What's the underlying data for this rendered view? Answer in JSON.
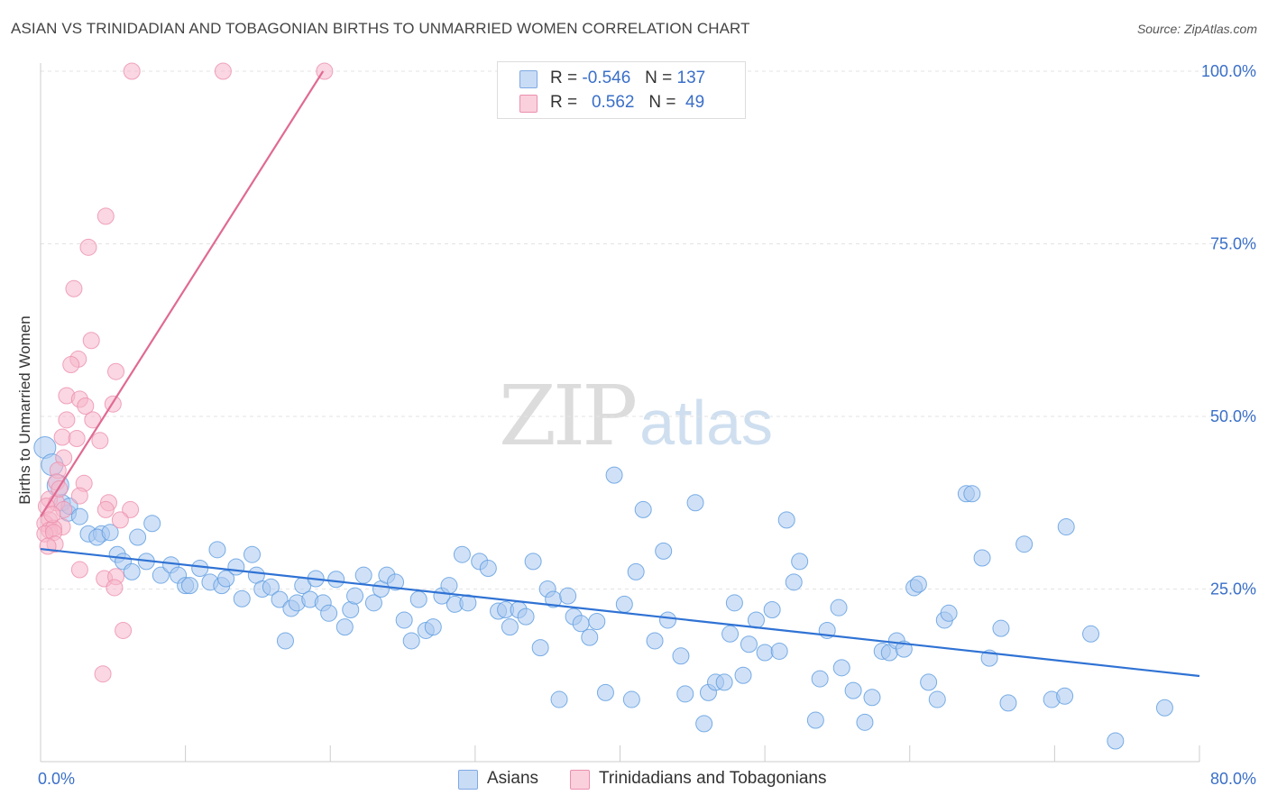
{
  "header": {
    "title": "ASIAN VS TRINIDADIAN AND TOBAGONIAN BIRTHS TO UNMARRIED WOMEN CORRELATION CHART",
    "source": "Source: ZipAtlas.com"
  },
  "watermark": {
    "zip": "ZIP",
    "atlas": "atlas"
  },
  "legend": {
    "rows": [
      {
        "r_label": "R =",
        "r_value": "-0.546",
        "n_label": "N =",
        "n_value": "137",
        "color": "#a9c8f0"
      },
      {
        "r_label": "R =",
        "r_value": "0.562",
        "n_label": "N =",
        "n_value": "49",
        "color": "#f6b7cb"
      }
    ]
  },
  "bottom_legend": {
    "items": [
      {
        "label": "Asians",
        "color": "#a9c8f0"
      },
      {
        "label": "Trinidadians and Tobagonians",
        "color": "#f6b7cb"
      }
    ]
  },
  "chart_data": {
    "type": "scatter",
    "title": "ASIAN VS TRINIDADIAN AND TOBAGONIAN BIRTHS TO UNMARRIED WOMEN CORRELATION CHART",
    "xlabel": "",
    "ylabel": "Births to Unmarried Women",
    "xlim": [
      0,
      80
    ],
    "ylim": [
      0,
      100
    ],
    "x_tick_labels": {
      "0": "0.0%",
      "80": "80.0%"
    },
    "y_tick_labels": {
      "25": "25.0%",
      "50": "50.0%",
      "75": "75.0%",
      "100": "100.0%"
    },
    "grid": true,
    "series": [
      {
        "name": "Asians",
        "color": "#5b9be0",
        "fill": "#a9c8f0",
        "trend": {
          "x": [
            0,
            80
          ],
          "y": [
            30.8,
            12.4
          ],
          "color": "#2f72d4"
        },
        "points": [
          [
            0.3,
            45.5
          ],
          [
            0.8,
            43
          ],
          [
            1.2,
            40
          ],
          [
            1.5,
            37.5
          ],
          [
            1.9,
            36
          ],
          [
            2,
            37
          ],
          [
            2.7,
            35.5
          ],
          [
            3.3,
            33
          ],
          [
            4.2,
            33
          ],
          [
            3.9,
            32.5
          ],
          [
            4.8,
            33.2
          ],
          [
            5.3,
            30
          ],
          [
            5.7,
            29
          ],
          [
            6.3,
            27.5
          ],
          [
            6.7,
            32.5
          ],
          [
            7.7,
            34.5
          ],
          [
            7.3,
            29
          ],
          [
            8.3,
            27
          ],
          [
            9,
            28.5
          ],
          [
            9.5,
            27
          ],
          [
            10,
            25.5
          ],
          [
            10.3,
            25.5
          ],
          [
            11,
            28
          ],
          [
            11.7,
            26
          ],
          [
            12.2,
            30.7
          ],
          [
            12.5,
            25.5
          ],
          [
            12.8,
            26.5
          ],
          [
            13.5,
            28.2
          ],
          [
            13.9,
            23.6
          ],
          [
            14.6,
            30
          ],
          [
            14.9,
            27
          ],
          [
            15.3,
            25
          ],
          [
            15.9,
            25.3
          ],
          [
            16.5,
            23.5
          ],
          [
            16.9,
            17.5
          ],
          [
            17.3,
            22.2
          ],
          [
            17.7,
            23
          ],
          [
            18.1,
            25.5
          ],
          [
            18.6,
            23.5
          ],
          [
            19,
            26.5
          ],
          [
            19.5,
            23
          ],
          [
            19.9,
            21.5
          ],
          [
            20.4,
            26.4
          ],
          [
            21,
            19.5
          ],
          [
            21.4,
            22
          ],
          [
            21.7,
            24
          ],
          [
            22.3,
            27
          ],
          [
            23,
            23
          ],
          [
            23.5,
            25
          ],
          [
            23.9,
            27
          ],
          [
            24.5,
            26
          ],
          [
            25.1,
            20.5
          ],
          [
            25.6,
            17.5
          ],
          [
            26.1,
            23.5
          ],
          [
            26.6,
            19
          ],
          [
            27.1,
            19.5
          ],
          [
            27.7,
            24
          ],
          [
            28.2,
            25.5
          ],
          [
            28.6,
            22.8
          ],
          [
            29.1,
            30
          ],
          [
            29.5,
            23
          ],
          [
            30.3,
            29
          ],
          [
            30.9,
            28
          ],
          [
            31.6,
            21.8
          ],
          [
            32.1,
            22
          ],
          [
            32.4,
            19.5
          ],
          [
            33,
            22
          ],
          [
            33.5,
            21
          ],
          [
            34,
            29
          ],
          [
            34.5,
            16.5
          ],
          [
            35,
            25
          ],
          [
            35.4,
            23.5
          ],
          [
            35.8,
            9
          ],
          [
            36.4,
            24
          ],
          [
            36.8,
            21
          ],
          [
            37.3,
            20
          ],
          [
            37.9,
            18
          ],
          [
            38.4,
            20.3
          ],
          [
            39,
            10
          ],
          [
            39.6,
            41.5
          ],
          [
            40.3,
            22.8
          ],
          [
            40.8,
            9
          ],
          [
            41.1,
            27.5
          ],
          [
            41.6,
            36.5
          ],
          [
            42.4,
            17.5
          ],
          [
            43,
            30.5
          ],
          [
            43.3,
            20.5
          ],
          [
            44.2,
            15.3
          ],
          [
            44.5,
            9.8
          ],
          [
            45.2,
            37.5
          ],
          [
            45.8,
            5.5
          ],
          [
            46.1,
            10
          ],
          [
            46.6,
            11.5
          ],
          [
            47.2,
            11.5
          ],
          [
            47.6,
            18.5
          ],
          [
            47.9,
            23
          ],
          [
            48.5,
            12.5
          ],
          [
            48.9,
            17
          ],
          [
            49.4,
            20.5
          ],
          [
            50,
            15.8
          ],
          [
            50.5,
            22
          ],
          [
            51,
            16
          ],
          [
            51.5,
            35
          ],
          [
            52,
            26
          ],
          [
            52.4,
            29
          ],
          [
            53.5,
            6
          ],
          [
            53.8,
            12
          ],
          [
            54.3,
            19
          ],
          [
            55.1,
            22.3
          ],
          [
            55.3,
            13.6
          ],
          [
            56.1,
            10.3
          ],
          [
            56.9,
            5.7
          ],
          [
            57.4,
            9.3
          ],
          [
            58.1,
            16
          ],
          [
            58.6,
            15.8
          ],
          [
            59.1,
            17.5
          ],
          [
            59.6,
            16.3
          ],
          [
            60.3,
            25.2
          ],
          [
            60.6,
            25.7
          ],
          [
            61.3,
            11.5
          ],
          [
            61.9,
            9
          ],
          [
            62.4,
            20.5
          ],
          [
            62.7,
            21.5
          ],
          [
            63.9,
            38.8
          ],
          [
            64.3,
            38.8
          ],
          [
            65,
            29.5
          ],
          [
            65.5,
            15
          ],
          [
            66.3,
            19.3
          ],
          [
            66.8,
            8.5
          ],
          [
            67.9,
            31.5
          ],
          [
            69.8,
            9
          ],
          [
            70.8,
            34
          ],
          [
            70.7,
            9.5
          ],
          [
            72.5,
            18.5
          ],
          [
            74.2,
            3
          ],
          [
            77.6,
            7.8
          ]
        ]
      },
      {
        "name": "Trinidadians and Tobagonians",
        "color": "#ec8fad",
        "fill": "#f6b7cb",
        "trend": {
          "x": [
            0,
            19.5
          ],
          "y": [
            35.5,
            100
          ],
          "color": "#e06a93"
        },
        "points": [
          [
            6.3,
            100
          ],
          [
            12.6,
            100
          ],
          [
            19.6,
            100
          ],
          [
            4.5,
            79
          ],
          [
            3.3,
            74.5
          ],
          [
            2.3,
            68.5
          ],
          [
            3.5,
            61
          ],
          [
            2.6,
            58.3
          ],
          [
            2.1,
            57.5
          ],
          [
            5.2,
            56.5
          ],
          [
            1.8,
            53
          ],
          [
            2.7,
            52.5
          ],
          [
            5,
            51.8
          ],
          [
            3.1,
            51.5
          ],
          [
            1.8,
            49.5
          ],
          [
            3.6,
            49.5
          ],
          [
            1.5,
            47
          ],
          [
            4.1,
            46.5
          ],
          [
            2.5,
            46.8
          ],
          [
            1.6,
            44
          ],
          [
            1.2,
            42.2
          ],
          [
            1.1,
            40.5
          ],
          [
            3,
            40.3
          ],
          [
            0.6,
            38
          ],
          [
            1.1,
            37.5
          ],
          [
            2.7,
            38.5
          ],
          [
            4.7,
            37.5
          ],
          [
            0.4,
            37
          ],
          [
            1.6,
            36.5
          ],
          [
            4.5,
            36.5
          ],
          [
            6.2,
            36.5
          ],
          [
            0.6,
            35
          ],
          [
            5.5,
            35
          ],
          [
            0.3,
            34.5
          ],
          [
            1.5,
            34
          ],
          [
            0.6,
            33.5
          ],
          [
            0.9,
            33.8
          ],
          [
            0.3,
            33
          ],
          [
            0.9,
            33.2
          ],
          [
            1,
            31.5
          ],
          [
            2.7,
            27.8
          ],
          [
            4.4,
            26.5
          ],
          [
            5.2,
            26.8
          ],
          [
            5.1,
            25.2
          ],
          [
            5.7,
            19
          ],
          [
            4.3,
            12.7
          ],
          [
            0.8,
            35.8
          ],
          [
            1.3,
            39.5
          ],
          [
            0.5,
            31.2
          ]
        ]
      }
    ]
  }
}
